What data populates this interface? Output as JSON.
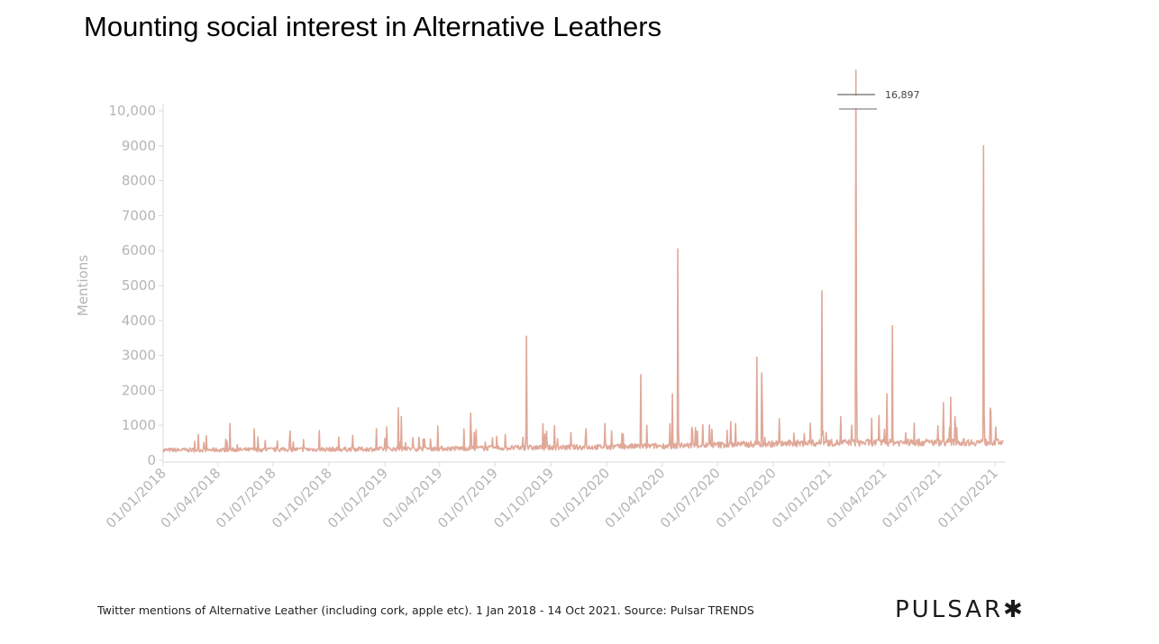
{
  "title": "Mounting social interest in Alternative Leathers",
  "caption": "Twitter mentions of Alternative Leather (including cork, apple etc). 1 Jan 2018 - 14 Oct 2021. Source: Pulsar TRENDS",
  "logo": "PULSAR✱",
  "chart_data": {
    "type": "line",
    "title": "",
    "xlabel": "",
    "ylabel": "Mentions",
    "xrange": [
      "2018-01-01",
      "2021-10-14"
    ],
    "ylim": [
      0,
      10000
    ],
    "y_ticks": [
      0,
      1000,
      2000,
      3000,
      4000,
      5000,
      6000,
      7000,
      8000,
      9000,
      10000
    ],
    "y_tick_labels": [
      "0",
      "1000",
      "2000",
      "3000",
      "4000",
      "5000",
      "6000",
      "7000",
      "8000",
      "9000",
      "10,000"
    ],
    "x_tick_labels": [
      "01/01/2018",
      "01/04/2018",
      "01/07/2018",
      "01/10/2018",
      "01/01/2019",
      "01/04/2019",
      "01/07/2019",
      "01/10/2019",
      "01/01/2020",
      "01/04/2020",
      "01/07/2020",
      "01/10/2020",
      "01/01/2021",
      "01/04/2021",
      "01/07/2021",
      "01/10/2021"
    ],
    "color": "#e0a898",
    "baseline": [
      {
        "date": "2018-01-01",
        "value": 290
      },
      {
        "date": "2019-01-01",
        "value": 320
      },
      {
        "date": "2020-01-01",
        "value": 380
      },
      {
        "date": "2021-01-01",
        "value": 500
      },
      {
        "date": "2021-10-14",
        "value": 520
      }
    ],
    "spikes": [
      {
        "date": "2018-03-13",
        "value": 700
      },
      {
        "date": "2018-04-21",
        "value": 1050
      },
      {
        "date": "2018-05-31",
        "value": 900
      },
      {
        "date": "2018-09-15",
        "value": 850
      },
      {
        "date": "2018-12-18",
        "value": 900
      },
      {
        "date": "2019-01-23",
        "value": 1500
      },
      {
        "date": "2019-01-28",
        "value": 1250
      },
      {
        "date": "2019-05-22",
        "value": 1350
      },
      {
        "date": "2019-08-22",
        "value": 3550
      },
      {
        "date": "2019-11-28",
        "value": 900
      },
      {
        "date": "2019-12-29",
        "value": 1050
      },
      {
        "date": "2020-02-26",
        "value": 2450
      },
      {
        "date": "2020-03-07",
        "value": 1000
      },
      {
        "date": "2020-04-18",
        "value": 1900
      },
      {
        "date": "2020-04-27",
        "value": 6050
      },
      {
        "date": "2020-07-23",
        "value": 1100
      },
      {
        "date": "2020-07-31",
        "value": 1050
      },
      {
        "date": "2020-09-04",
        "value": 2950
      },
      {
        "date": "2020-09-12",
        "value": 2500
      },
      {
        "date": "2020-12-20",
        "value": 4850
      },
      {
        "date": "2021-01-20",
        "value": 1250
      },
      {
        "date": "2021-02-07",
        "value": 1000
      },
      {
        "date": "2021-02-14",
        "value": 16897
      },
      {
        "date": "2021-03-12",
        "value": 1200
      },
      {
        "date": "2021-04-06",
        "value": 1900
      },
      {
        "date": "2021-04-15",
        "value": 3850
      },
      {
        "date": "2021-07-08",
        "value": 1650
      },
      {
        "date": "2021-07-20",
        "value": 1800
      },
      {
        "date": "2021-09-12",
        "value": 9000
      },
      {
        "date": "2021-10-02",
        "value": 950
      }
    ],
    "annotation": "16,897",
    "grid": false,
    "legend": "none"
  }
}
